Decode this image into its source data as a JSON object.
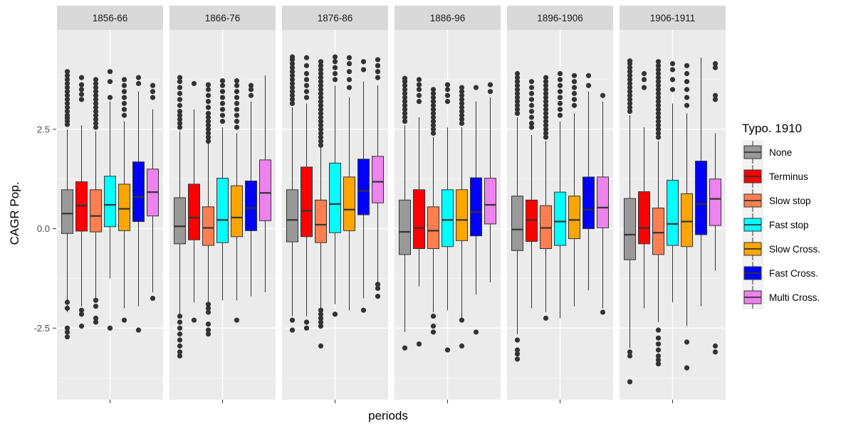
{
  "chart_data": {
    "type": "boxplot",
    "xlabel": "periods",
    "ylabel": "CAGR Pop.",
    "ylim": [
      -4.3,
      5.0
    ],
    "yticks": [
      -2.5,
      0.0,
      2.5
    ],
    "ytick_labels": [
      "-2.5",
      "0.0",
      "2.5"
    ],
    "grid": true,
    "facet_variable": "periods",
    "panels": [
      "1856-66",
      "1866-76",
      "1876-86",
      "1886-96",
      "1896-1906",
      "1906-1911"
    ],
    "legend": {
      "title": "Typo. 1910",
      "position": "right",
      "entries": [
        "None",
        "Terminus",
        "Slow stop",
        "Fast stop",
        "Slow Cross.",
        "Fast Cross.",
        "Multi Cross."
      ]
    },
    "series": [
      {
        "name": "None",
        "color": "#999999",
        "boxes": [
          {
            "whisker_low": -2.1,
            "q1": -0.12,
            "median": 0.38,
            "q3": 0.98,
            "whisker_high": 2.5,
            "outliers": [
              -1.85,
              -2.0,
              -2.5,
              -2.6,
              -2.72,
              2.62,
              2.7,
              2.78,
              2.85,
              2.95,
              3.05,
              3.15,
              3.25,
              3.35,
              3.45,
              3.55,
              3.65,
              3.75,
              3.85,
              3.95
            ]
          },
          {
            "whisker_low": -2.15,
            "q1": -0.38,
            "median": 0.06,
            "q3": 0.78,
            "whisker_high": 2.45,
            "outliers": [
              -2.2,
              -2.35,
              -2.5,
              -2.65,
              -2.8,
              -2.95,
              -3.1,
              -3.2,
              2.55,
              2.65,
              2.75,
              2.85,
              2.95,
              3.1,
              3.25,
              3.4,
              3.55,
              3.7,
              3.8
            ]
          },
          {
            "whisker_low": -2.2,
            "q1": -0.33,
            "median": 0.22,
            "q3": 0.98,
            "whisker_high": 3.05,
            "outliers": [
              -2.3,
              -2.55,
              3.15,
              3.25,
              3.35,
              3.45,
              3.55,
              3.65,
              3.75,
              3.85,
              3.95,
              4.05,
              4.15,
              4.25,
              4.32
            ]
          },
          {
            "whisker_low": -2.6,
            "q1": -0.65,
            "median": -0.08,
            "q3": 0.72,
            "whisker_high": 2.6,
            "outliers": [
              -3.0,
              2.7,
              2.8,
              2.9,
              3.0,
              3.1,
              3.2,
              3.3,
              3.4,
              3.5,
              3.6,
              3.7,
              3.78
            ]
          },
          {
            "whisker_low": -2.65,
            "q1": -0.55,
            "median": -0.02,
            "q3": 0.82,
            "whisker_high": 2.8,
            "outliers": [
              -2.8,
              -3.05,
              -3.15,
              -3.28,
              2.9,
              3.0,
              3.1,
              3.2,
              3.3,
              3.4,
              3.5,
              3.6,
              3.7,
              3.8,
              3.9
            ]
          },
          {
            "whisker_low": -3.0,
            "q1": -0.78,
            "median": -0.15,
            "q3": 0.76,
            "whisker_high": 2.85,
            "outliers": [
              -3.1,
              -3.2,
              -3.85,
              2.95,
              3.05,
              3.15,
              3.25,
              3.35,
              3.45,
              3.55,
              3.65,
              3.75,
              3.85,
              3.95,
              4.05,
              4.15,
              4.22
            ]
          }
        ]
      },
      {
        "name": "Terminus",
        "color": "#FF0000",
        "boxes": [
          {
            "whisker_low": -1.95,
            "q1": -0.06,
            "median": 0.58,
            "q3": 1.18,
            "whisker_high": 2.6,
            "outliers": [
              -2.05,
              -2.15,
              -2.45,
              3.25,
              3.38,
              3.5,
              3.62,
              3.8
            ]
          },
          {
            "whisker_low": -1.85,
            "q1": -0.28,
            "median": 0.28,
            "q3": 1.12,
            "whisker_high": 3.0,
            "outliers": [
              -2.3,
              3.65
            ]
          },
          {
            "whisker_low": -2.2,
            "q1": -0.2,
            "median": 0.45,
            "q3": 1.55,
            "whisker_high": 3.15,
            "outliers": [
              -2.35,
              -2.5,
              3.3,
              3.45,
              3.6,
              3.75,
              3.9,
              4.1,
              4.3
            ]
          },
          {
            "whisker_low": -1.45,
            "q1": -0.5,
            "median": 0.02,
            "q3": 0.98,
            "whisker_high": 2.8,
            "outliers": [
              -2.9,
              3.2,
              3.35,
              3.5,
              3.62,
              3.75
            ]
          },
          {
            "whisker_low": -2.0,
            "q1": -0.32,
            "median": 0.22,
            "q3": 0.72,
            "whisker_high": 2.35,
            "outliers": [
              2.55,
              2.65,
              2.8,
              2.95,
              3.1,
              3.25,
              3.4,
              3.55,
              3.7
            ]
          },
          {
            "whisker_low": -2.0,
            "q1": -0.38,
            "median": 0.02,
            "q3": 0.93,
            "whisker_high": 2.55,
            "outliers": [
              3.55,
              3.75,
              3.9
            ]
          }
        ]
      },
      {
        "name": "Slow stop",
        "color": "#FF7F50",
        "boxes": [
          {
            "whisker_low": -1.75,
            "q1": -0.08,
            "median": 0.32,
            "q3": 0.98,
            "whisker_high": 2.45,
            "outliers": [
              -1.8,
              -1.95,
              -2.25,
              -2.35,
              2.55,
              2.65,
              2.75,
              2.85,
              2.95,
              3.05,
              3.15,
              3.25,
              3.35,
              3.45,
              3.55,
              3.65,
              3.75
            ]
          },
          {
            "whisker_low": -1.85,
            "q1": -0.42,
            "median": 0.02,
            "q3": 0.55,
            "whisker_high": 2.15,
            "outliers": [
              -1.9,
              -2.0,
              -2.1,
              -2.4,
              -2.55,
              -2.65,
              2.2,
              2.3,
              2.4,
              2.5,
              2.6,
              2.7,
              2.8,
              2.9,
              3.05,
              3.2,
              3.35,
              3.5,
              3.62
            ]
          },
          {
            "whisker_low": -2.0,
            "q1": -0.35,
            "median": 0.1,
            "q3": 0.72,
            "whisker_high": 2.05,
            "outliers": [
              -2.05,
              -2.15,
              -2.25,
              -2.35,
              -2.45,
              -2.95,
              2.1,
              2.2,
              2.3,
              2.4,
              2.5,
              2.6,
              2.7,
              2.8,
              2.9,
              3.0,
              3.1,
              3.2,
              3.3,
              3.4,
              3.5,
              3.6,
              3.7,
              3.8,
              3.9,
              4.0,
              4.1,
              4.2
            ]
          },
          {
            "whisker_low": -2.1,
            "q1": -0.5,
            "median": -0.05,
            "q3": 0.55,
            "whisker_high": 2.3,
            "outliers": [
              -2.2,
              -2.45,
              -2.6,
              2.4,
              2.5,
              2.6,
              2.7,
              2.8,
              2.9,
              3.0,
              3.1,
              3.2,
              3.3,
              3.4,
              3.5
            ]
          },
          {
            "whisker_low": -2.1,
            "q1": -0.5,
            "median": 0.02,
            "q3": 0.58,
            "whisker_high": 2.2,
            "outliers": [
              -2.25,
              2.3,
              2.4,
              2.5,
              2.6,
              2.7,
              2.8,
              2.9,
              3.0,
              3.1,
              3.2,
              3.3,
              3.4,
              3.5,
              3.6,
              3.7,
              3.8
            ]
          },
          {
            "whisker_low": -2.35,
            "q1": -0.65,
            "median": -0.1,
            "q3": 0.52,
            "whisker_high": 2.2,
            "outliers": [
              -2.55,
              -2.75,
              -2.9,
              -3.05,
              -3.2,
              -3.3,
              -3.4,
              2.3,
              2.4,
              2.5,
              2.6,
              2.7,
              2.8,
              2.9,
              3.0,
              3.1,
              3.2,
              3.3,
              3.4,
              3.5,
              3.6,
              3.7,
              3.8,
              3.9,
              4.0,
              4.1,
              4.2
            ]
          }
        ]
      },
      {
        "name": "Fast stop",
        "color": "#00FFFF",
        "boxes": [
          {
            "whisker_low": -1.25,
            "q1": 0.05,
            "median": 0.6,
            "q3": 1.32,
            "whisker_high": 3.2,
            "outliers": [
              -2.5,
              3.3,
              3.7,
              3.95
            ]
          },
          {
            "whisker_low": -1.8,
            "q1": -0.35,
            "median": 0.22,
            "q3": 1.27,
            "whisker_high": 2.55,
            "outliers": [
              2.7,
              2.85,
              3.0,
              3.15,
              3.3,
              3.45,
              3.6,
              3.72
            ]
          },
          {
            "whisker_low": -1.9,
            "q1": -0.1,
            "median": 0.62,
            "q3": 1.65,
            "whisker_high": 3.6,
            "outliers": [
              -2.15,
              3.75,
              3.9,
              4.05,
              4.2,
              4.32
            ]
          },
          {
            "whisker_low": -2.05,
            "q1": -0.45,
            "median": 0.22,
            "q3": 0.98,
            "whisker_high": 2.55,
            "outliers": [
              -3.05,
              3.2,
              3.35,
              3.5,
              3.62
            ]
          },
          {
            "whisker_low": -2.25,
            "q1": -0.42,
            "median": 0.18,
            "q3": 0.92,
            "whisker_high": 2.7,
            "outliers": [
              2.85,
              3.0,
              3.15,
              3.3,
              3.45,
              3.6,
              3.75,
              3.9
            ]
          },
          {
            "whisker_low": -1.85,
            "q1": -0.42,
            "median": 0.12,
            "q3": 1.22,
            "whisker_high": 3.15,
            "outliers": [
              3.5,
              3.75,
              4.0,
              4.15
            ]
          }
        ]
      },
      {
        "name": "Slow Cross.",
        "color": "#FFA500",
        "boxes": [
          {
            "whisker_low": -2.0,
            "q1": -0.05,
            "median": 0.5,
            "q3": 1.12,
            "whisker_high": 2.7,
            "outliers": [
              -2.3,
              2.85,
              3.0,
              3.15,
              3.3,
              3.45,
              3.6,
              3.75
            ]
          },
          {
            "whisker_low": -1.8,
            "q1": -0.2,
            "median": 0.28,
            "q3": 1.08,
            "whisker_high": 2.4,
            "outliers": [
              -2.3,
              2.55,
              2.7,
              2.85,
              3.0,
              3.15,
              3.3,
              3.45,
              3.6,
              3.72
            ]
          },
          {
            "whisker_low": -2.05,
            "q1": -0.05,
            "median": 0.48,
            "q3": 1.3,
            "whisker_high": 3.3,
            "outliers": [
              3.55,
              3.75,
              3.95,
              4.15,
              4.3
            ]
          },
          {
            "whisker_low": -2.3,
            "q1": -0.3,
            "median": 0.22,
            "q3": 0.98,
            "whisker_high": 2.55,
            "outliers": [
              -2.3,
              -2.95,
              2.65,
              2.75,
              2.85,
              2.95,
              3.05,
              3.15,
              3.25,
              3.35,
              3.45,
              3.55
            ]
          },
          {
            "whisker_low": -1.95,
            "q1": -0.25,
            "median": 0.22,
            "q3": 0.82,
            "whisker_high": 2.9,
            "outliers": [
              3.1,
              3.25,
              3.4,
              3.55,
              3.7,
              3.85
            ]
          },
          {
            "whisker_low": -2.45,
            "q1": -0.45,
            "median": 0.18,
            "q3": 0.88,
            "whisker_high": 2.9,
            "outliers": [
              -2.85,
              -3.5,
              3.1,
              3.3,
              3.5,
              3.7,
              3.9,
              4.1
            ]
          }
        ]
      },
      {
        "name": "Fast Cross.",
        "color": "#0000FF",
        "boxes": [
          {
            "whisker_low": -1.95,
            "q1": 0.18,
            "median": 0.8,
            "q3": 1.68,
            "whisker_high": 3.45,
            "outliers": [
              -2.55,
              3.65,
              3.8
            ]
          },
          {
            "whisker_low": -1.7,
            "q1": -0.05,
            "median": 0.52,
            "q3": 1.2,
            "whisker_high": 3.2,
            "outliers": [
              3.35,
              3.5,
              3.6
            ]
          },
          {
            "whisker_low": -1.75,
            "q1": 0.35,
            "median": 0.95,
            "q3": 1.75,
            "whisker_high": 3.7,
            "outliers": [
              -2.05,
              4.0,
              4.2
            ]
          },
          {
            "whisker_low": -1.65,
            "q1": -0.18,
            "median": 0.42,
            "q3": 1.28,
            "whisker_high": 3.2,
            "outliers": [
              -2.6,
              3.55
            ]
          },
          {
            "whisker_low": -1.55,
            "q1": 0.0,
            "median": 0.48,
            "q3": 1.3,
            "whisker_high": 3.45,
            "outliers": [
              3.6,
              3.85
            ]
          },
          {
            "whisker_low": -1.95,
            "q1": -0.15,
            "median": 0.62,
            "q3": 1.7,
            "whisker_high": 4.3,
            "outliers": []
          }
        ]
      },
      {
        "name": "Multi Cross.",
        "color": "#EE82EE",
        "boxes": [
          {
            "whisker_low": -1.6,
            "q1": 0.32,
            "median": 0.92,
            "q3": 1.5,
            "whisker_high": 3.0,
            "outliers": [
              -1.75,
              3.3,
              3.45,
              3.6
            ]
          },
          {
            "whisker_low": -1.6,
            "q1": 0.2,
            "median": 0.9,
            "q3": 1.73,
            "whisker_high": 3.85,
            "outliers": []
          },
          {
            "whisker_low": -1.35,
            "q1": 0.65,
            "median": 1.18,
            "q3": 1.82,
            "whisker_high": 3.6,
            "outliers": [
              -1.4,
              -1.5,
              -1.7,
              3.8,
              3.95,
              4.1,
              4.25
            ]
          },
          {
            "whisker_low": -1.35,
            "q1": 0.12,
            "median": 0.6,
            "q3": 1.27,
            "whisker_high": 3.3,
            "outliers": [
              3.45,
              3.62
            ]
          },
          {
            "whisker_low": -2.0,
            "q1": 0.02,
            "median": 0.53,
            "q3": 1.3,
            "whisker_high": 3.2,
            "outliers": [
              -2.1,
              3.35
            ]
          },
          {
            "whisker_low": -1.05,
            "q1": 0.08,
            "median": 0.75,
            "q3": 1.25,
            "whisker_high": 2.4,
            "outliers": [
              -2.95,
              -3.1,
              3.25,
              3.35,
              4.05,
              4.15
            ]
          }
        ]
      }
    ]
  }
}
